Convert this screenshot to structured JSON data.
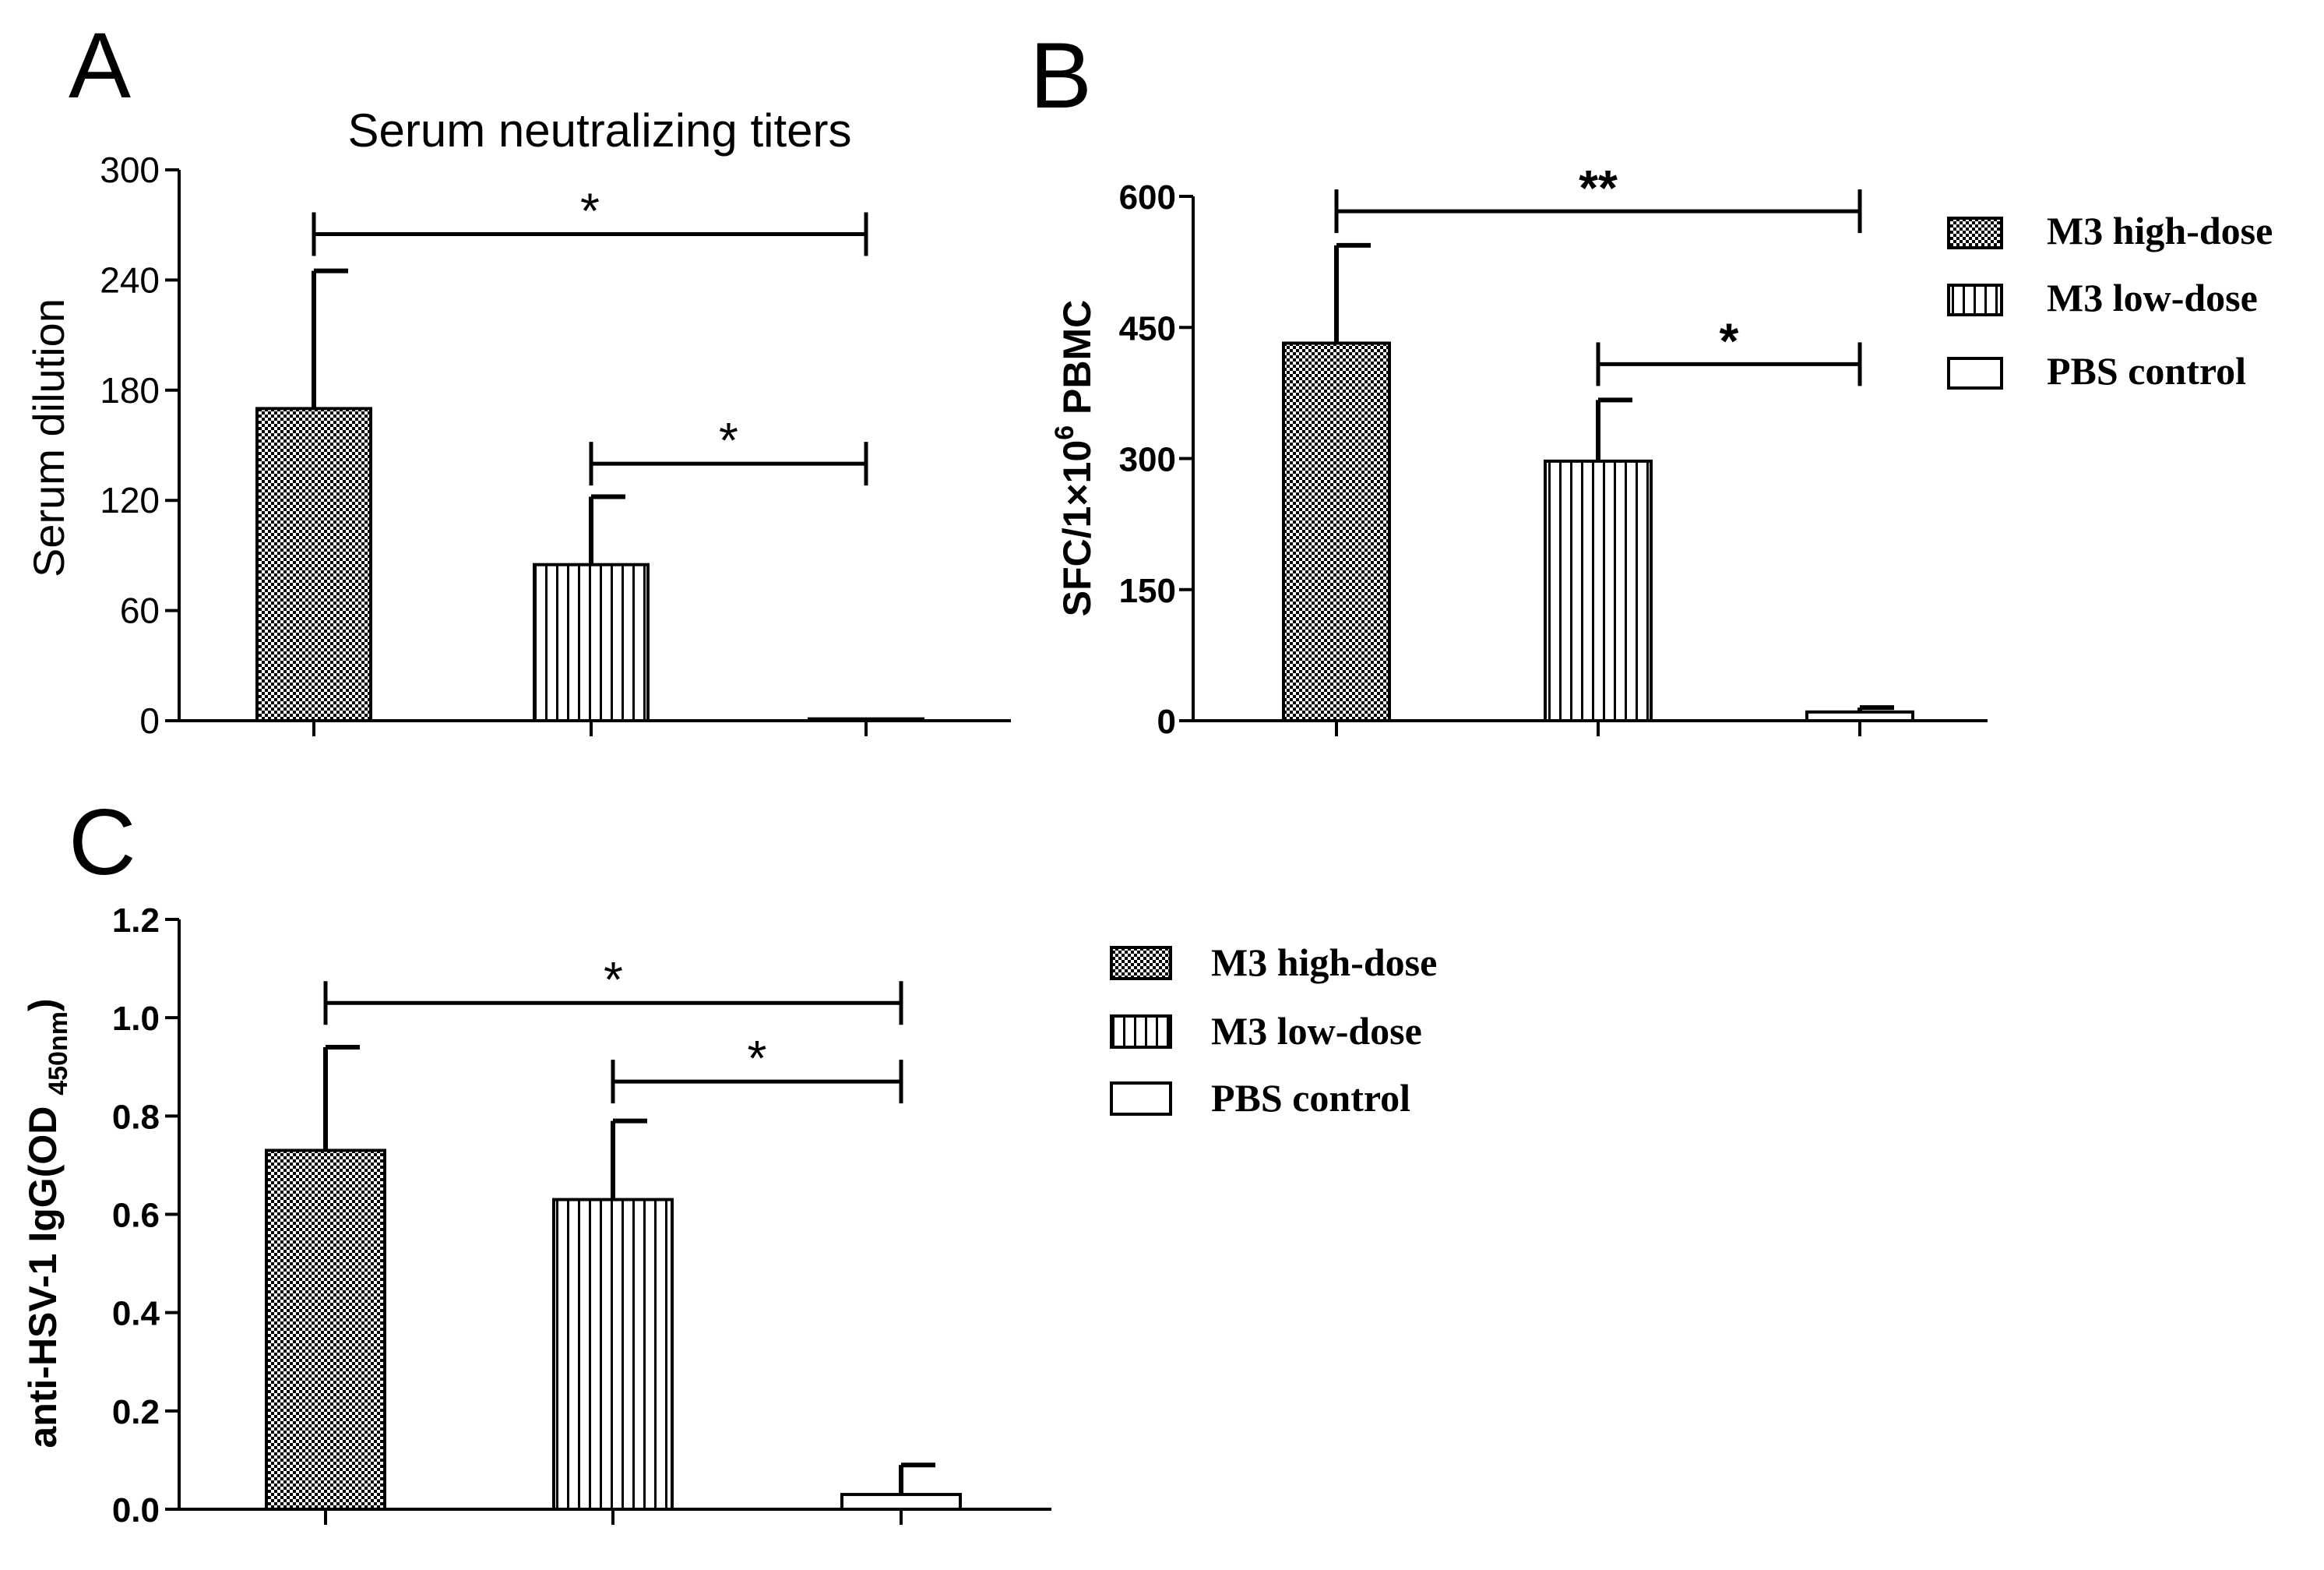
{
  "chart_data": [
    {
      "panel": "A",
      "type": "bar",
      "title": "Serum neutralizing titers",
      "xlabel": "",
      "ylabel": "Serum dilution",
      "ylim": [
        0,
        300
      ],
      "yticks": [
        "0",
        "60",
        "120",
        "180",
        "240",
        "300"
      ],
      "categories": [
        "M3 high-dose",
        "M3 low-dose",
        "PBS control"
      ],
      "values": [
        170,
        85,
        1
      ],
      "errors": [
        75,
        37,
        0
      ],
      "significance": [
        {
          "from": 0,
          "to": 2,
          "label": "*",
          "y": 265
        },
        {
          "from": 1,
          "to": 2,
          "label": "*",
          "y": 140
        }
      ]
    },
    {
      "panel": "B",
      "type": "bar",
      "title": "",
      "xlabel": "",
      "ylabel_main": "SFC/1×10",
      "ylabel_sup": "6",
      "ylabel_tail": " PBMC",
      "ylim": [
        0,
        600
      ],
      "yticks": [
        "0",
        "150",
        "300",
        "450",
        "600"
      ],
      "categories": [
        "M3 high-dose",
        "M3 low-dose",
        "PBS control"
      ],
      "values": [
        432,
        297,
        10
      ],
      "errors": [
        112,
        70,
        5
      ],
      "significance": [
        {
          "from": 0,
          "to": 2,
          "label": "**",
          "y": 583
        },
        {
          "from": 1,
          "to": 2,
          "label": "*",
          "y": 408
        }
      ]
    },
    {
      "panel": "C",
      "type": "bar",
      "title": "",
      "xlabel": "",
      "ylabel_main": "anti-HSV-1 IgG(OD ",
      "ylabel_sub": "450nm",
      "ylabel_tail": ")",
      "ylim": [
        0,
        1.2
      ],
      "yticks": [
        "0.0",
        "0.2",
        "0.4",
        "0.6",
        "0.8",
        "1.0",
        "1.2"
      ],
      "categories": [
        "M3 high-dose",
        "M3 low-dose",
        "PBS control"
      ],
      "values": [
        0.73,
        0.63,
        0.03
      ],
      "errors": [
        0.21,
        0.16,
        0.06
      ],
      "significance": [
        {
          "from": 0,
          "to": 2,
          "label": "*",
          "y": 1.03
        },
        {
          "from": 1,
          "to": 2,
          "label": "*",
          "y": 0.87
        }
      ]
    }
  ],
  "legend_top": [
    "M3 high-dose",
    "M3 low-dose",
    "PBS control"
  ],
  "legend_bottom": [
    "M3 high-dose",
    "M3 low-dose",
    "PBS control"
  ],
  "colors": {
    "ink": "#000000",
    "fill": "#ffffff"
  }
}
